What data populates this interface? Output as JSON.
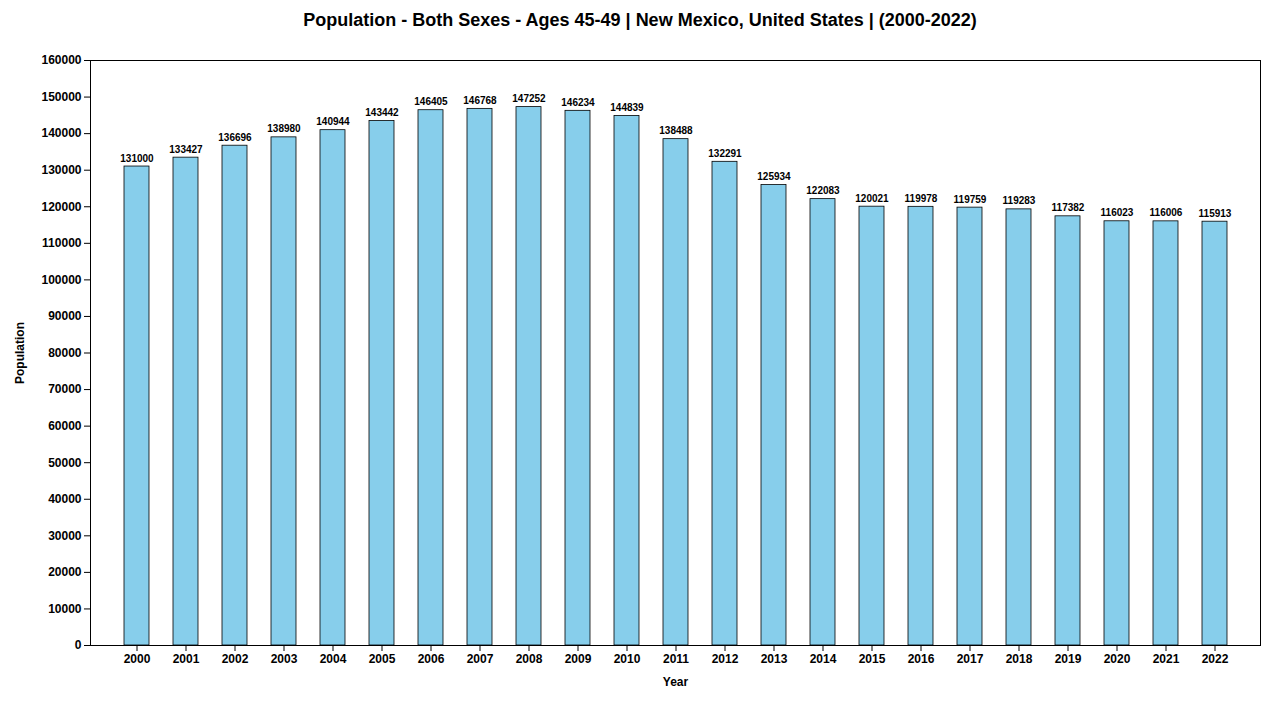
{
  "chart_data": {
    "type": "bar",
    "title": "Population - Both Sexes - Ages 45-49 | New Mexico, United States |  (2000-2022)",
    "x_label": "Year",
    "y_label": "Population",
    "categories": [
      "2000",
      "2001",
      "2002",
      "2003",
      "2004",
      "2005",
      "2006",
      "2007",
      "2008",
      "2009",
      "2010",
      "2011",
      "2012",
      "2013",
      "2014",
      "2015",
      "2016",
      "2017",
      "2018",
      "2019",
      "2020",
      "2021",
      "2022"
    ],
    "values": [
      131000,
      133427,
      136696,
      138980,
      140944,
      143442,
      146405,
      146768,
      147252,
      146234,
      144839,
      138488,
      132291,
      125934,
      122083,
      120021,
      119978,
      119759,
      119283,
      117382,
      116023,
      116006,
      115913
    ],
    "color": "#87ceeb",
    "ylim": [
      0,
      160000
    ],
    "yticks": [
      0,
      10000,
      20000,
      30000,
      40000,
      50000,
      60000,
      70000,
      80000,
      90000,
      100000,
      110000,
      120000,
      130000,
      140000,
      150000,
      160000
    ],
    "grid": false,
    "data_labels": true
  }
}
